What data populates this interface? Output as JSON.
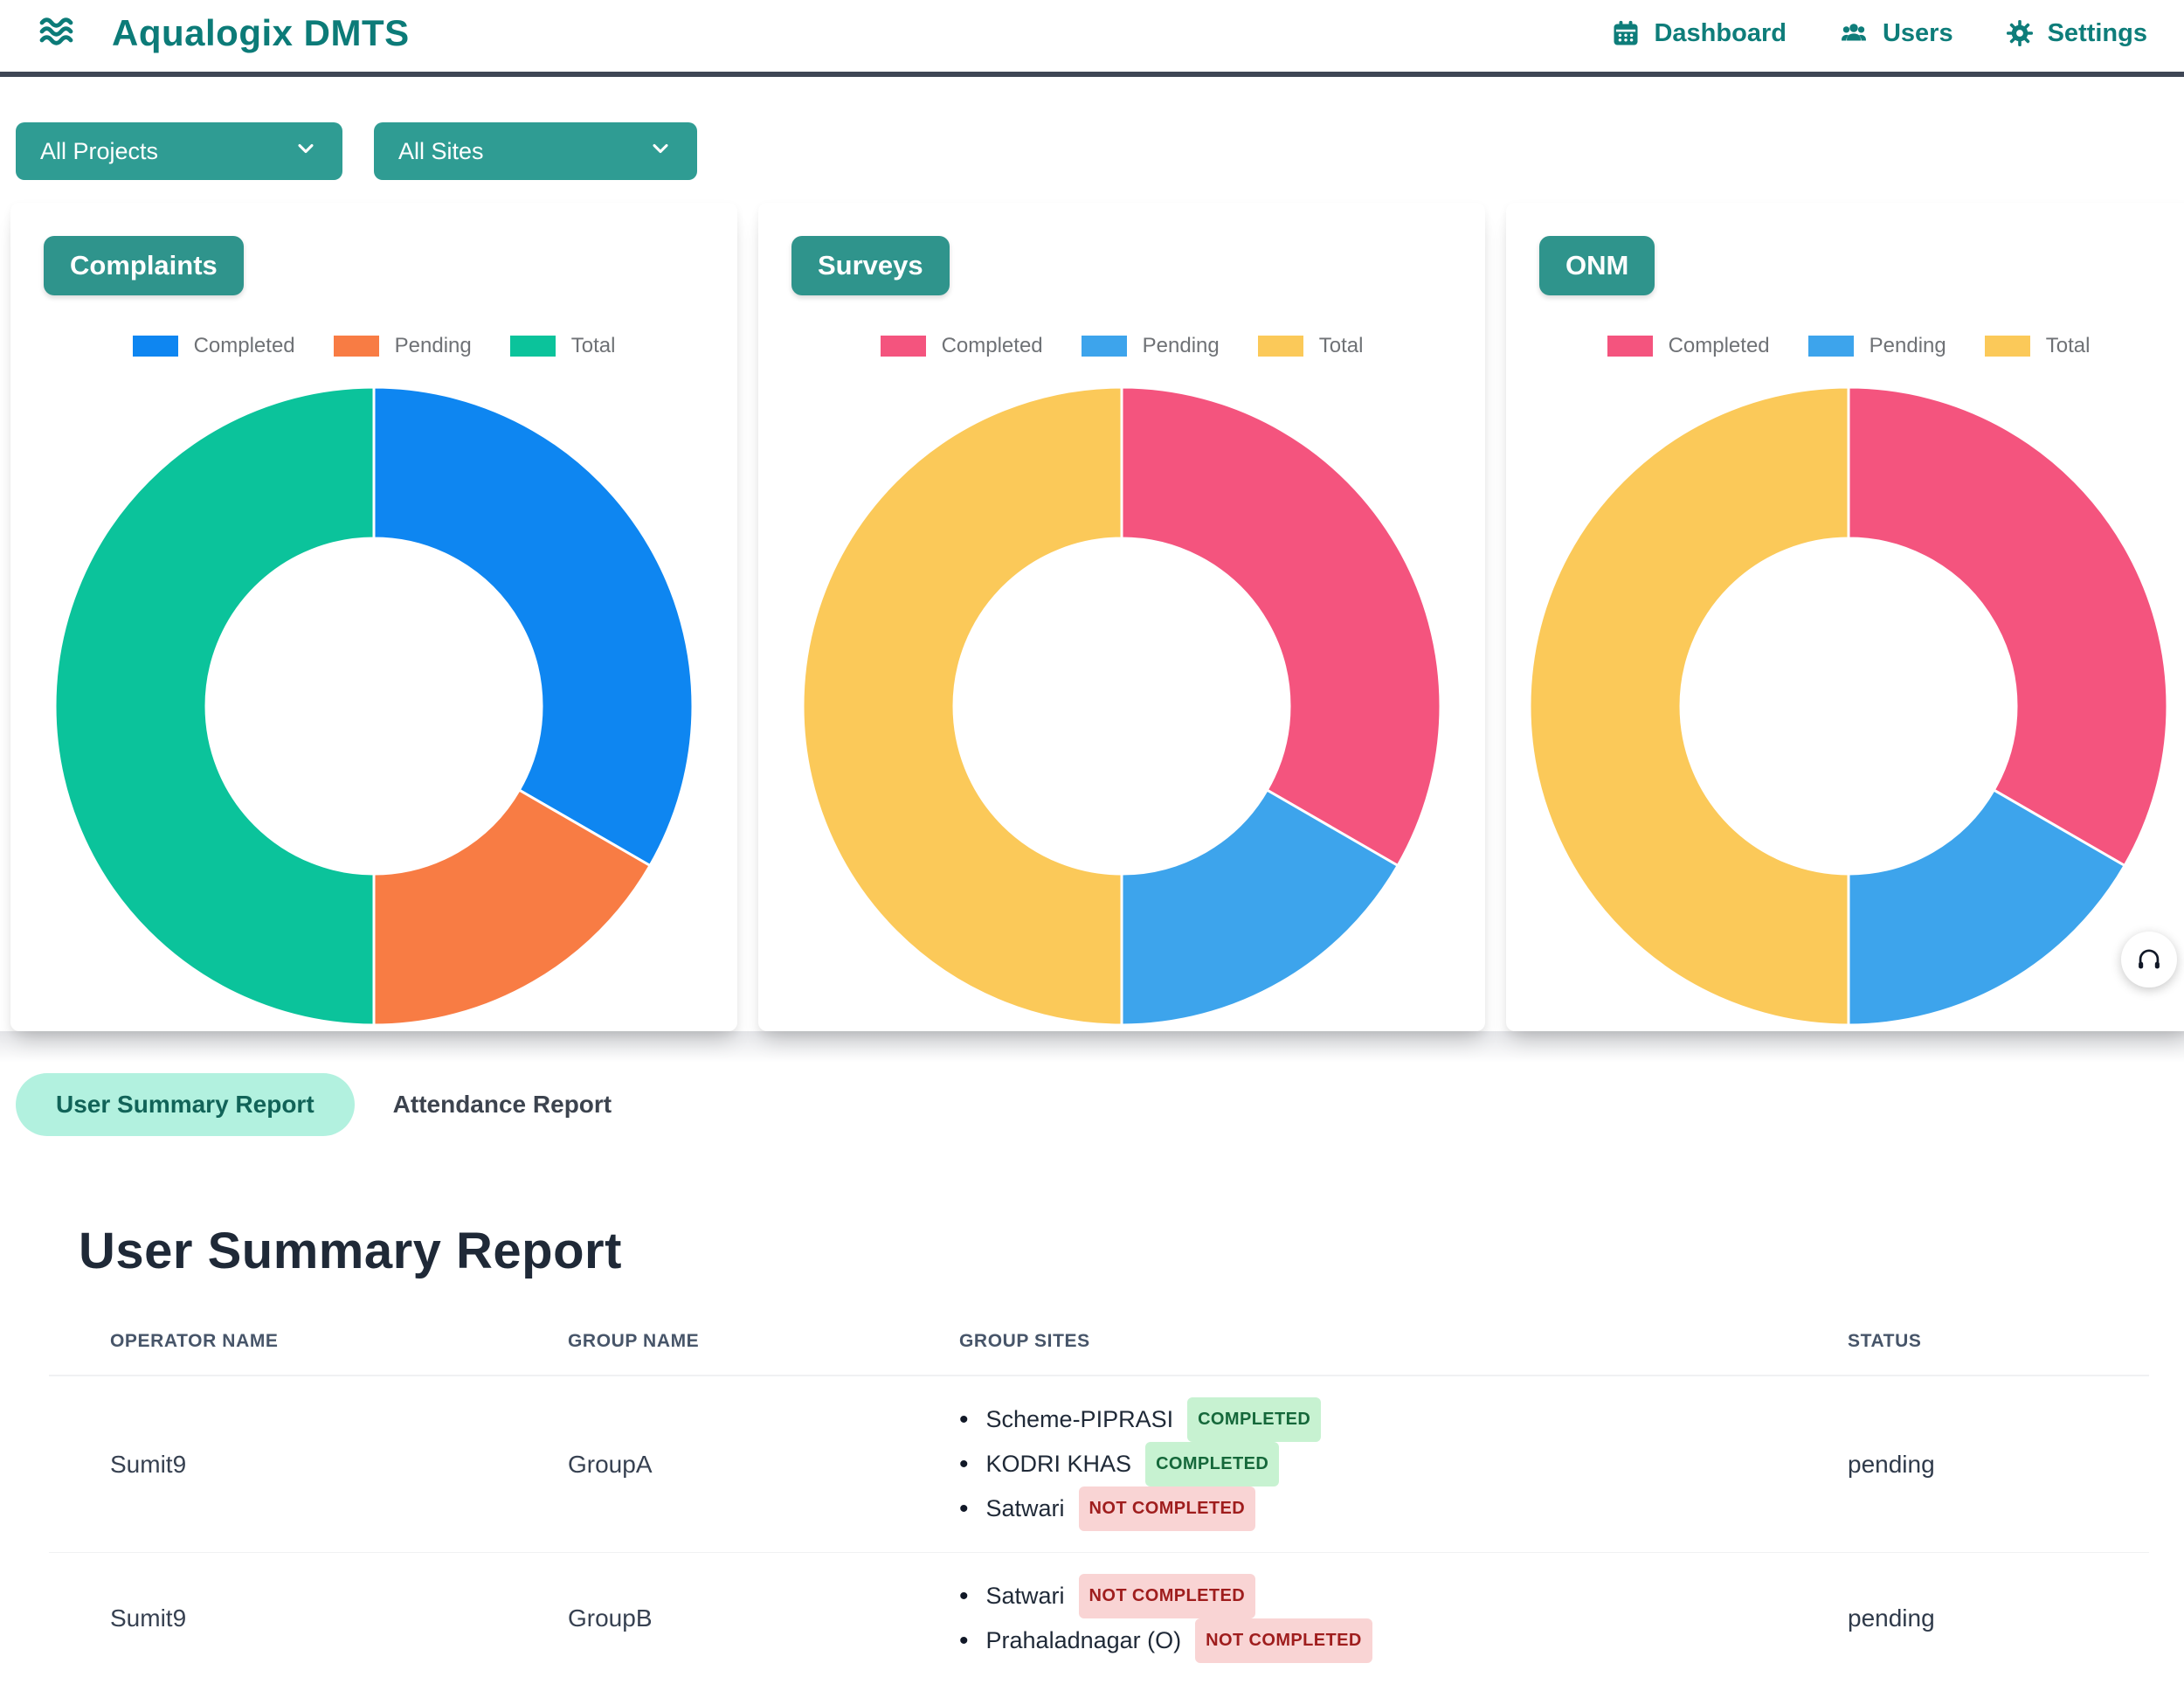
{
  "navbar": {
    "brand": "Aqualogix DMTS",
    "items": [
      {
        "label": "Dashboard",
        "icon": "calendar-icon"
      },
      {
        "label": "Users",
        "icon": "users-icon"
      },
      {
        "label": "Settings",
        "icon": "gear-icon"
      }
    ]
  },
  "filters": [
    {
      "value": "All Projects"
    },
    {
      "value": "All Sites"
    }
  ],
  "chart_data": [
    {
      "type": "donut",
      "title": "Complaints",
      "legend_position": "top",
      "categories": [
        "Completed",
        "Pending",
        "Total"
      ],
      "values": [
        2,
        1,
        3
      ],
      "angles_deg": [
        120,
        60,
        180
      ],
      "colors": [
        "#0e86f1",
        "#f87c44",
        "#0bc39b"
      ]
    },
    {
      "type": "donut",
      "title": "Surveys",
      "legend_position": "top",
      "categories": [
        "Completed",
        "Pending",
        "Total"
      ],
      "values": [
        2,
        1,
        3
      ],
      "angles_deg": [
        120,
        60,
        180
      ],
      "colors": [
        "#f4547e",
        "#3da4ec",
        "#fbc959"
      ]
    },
    {
      "type": "donut",
      "title": "ONM",
      "legend_position": "top",
      "categories": [
        "Completed",
        "Pending",
        "Total"
      ],
      "values": [
        2,
        1,
        3
      ],
      "angles_deg": [
        120,
        60,
        180
      ],
      "colors": [
        "#f4547e",
        "#3da4ec",
        "#fbc959"
      ]
    }
  ],
  "tabs": [
    {
      "label": "User Summary Report",
      "active": true
    },
    {
      "label": "Attendance Report",
      "active": false
    }
  ],
  "report": {
    "title": "User Summary Report",
    "columns": [
      "OPERATOR NAME",
      "GROUP NAME",
      "GROUP SITES",
      "STATUS"
    ],
    "rows": [
      {
        "operator": "Sumit9",
        "group": "GroupA",
        "sites": [
          {
            "name": "Scheme-PIPRASI",
            "badge": "COMPLETED"
          },
          {
            "name": "KODRI KHAS",
            "badge": "COMPLETED"
          },
          {
            "name": "Satwari",
            "badge": "NOT COMPLETED"
          }
        ],
        "status": "pending"
      },
      {
        "operator": "Sumit9",
        "group": "GroupB",
        "sites": [
          {
            "name": "Satwari",
            "badge": "NOT COMPLETED"
          },
          {
            "name": "Prahaladnagar (O)",
            "badge": "NOT COMPLETED"
          }
        ],
        "status": "pending"
      }
    ]
  },
  "fab": {
    "icon": "headphones-icon"
  },
  "theme": {
    "brand_teal": "#0c7b78",
    "button_teal": "#2f9c93",
    "chip_teal": "#2f948c",
    "navbar_border": "#3e4655",
    "tab_active_bg": "#b2f1df",
    "tab_active_text": "#116358",
    "badge_completed_bg": "#c7f2d1",
    "badge_completed_text": "#15683a",
    "badge_not_completed_bg": "#f9d4d4",
    "badge_not_completed_text": "#9f1d1d"
  }
}
